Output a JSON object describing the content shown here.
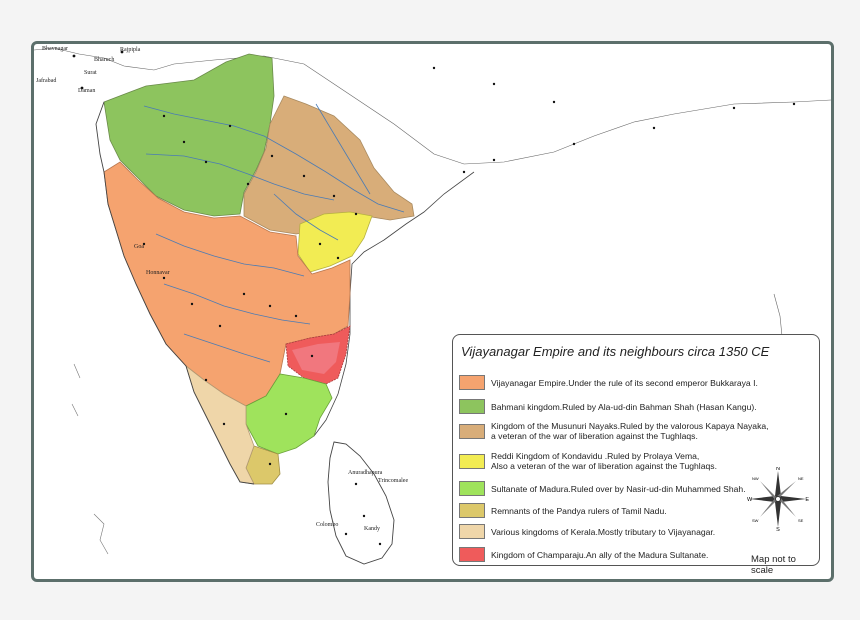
{
  "legend": {
    "title": "Vijayanagar Empire and its neighbours circa 1350 CE",
    "items": [
      {
        "id": "vijayanagar",
        "color": "#f5a36f",
        "label": "Vijayanagar Empire.Under the rule of its second emperor Bukkaraya I."
      },
      {
        "id": "bahmani",
        "color": "#8dc45e",
        "label": "Bahmani kingdom.Ruled by Ala-ud-din Bahman Shah (Hasan Kangu)."
      },
      {
        "id": "musunuri",
        "color": "#d8ad79",
        "label": "Kingdom of the Musunuri Nayaks.Ruled by the valorous Kapaya Nayaka,\na veteran of the war of  liberation against the Tughlaqs."
      },
      {
        "id": "reddi",
        "color": "#f2ec53",
        "label": "Reddi Kingdom of Kondavidu .Ruled by Prolaya Vema,\nAlso a veteran of the war of  liberation against the Tughlaqs."
      },
      {
        "id": "madura",
        "color": "#9fe35c",
        "label": "Sultanate of Madura.Ruled over by Nasir-ud-din Muhammed Shah."
      },
      {
        "id": "pandya",
        "color": "#dcc86a",
        "label": "Remnants of the Pandya rulers of Tamil Nadu."
      },
      {
        "id": "kerala",
        "color": "#efd6a9",
        "label": "Various kingdoms of Kerala.Mostly tributary to Vijayanagar."
      },
      {
        "id": "champaraju",
        "color": "#ef5b5b",
        "label": "Kingdom of Champaraju.An ally of the Madura Sultanate."
      }
    ]
  },
  "scale_note": "Map not to scale",
  "compass": {
    "n": "N",
    "s": "S",
    "e": "E",
    "w": "W",
    "ne": "NE",
    "nw": "NW",
    "se": "SE",
    "sw": "SW"
  },
  "places": {
    "bhavnagar": "Bhavnagar",
    "bharuch": "Bharuch",
    "rajpipla": "Rajpipla",
    "daman": "Daman",
    "jafrabad": "Jafrabad",
    "surat": "Surat",
    "goa": "Goa",
    "honnavar": "Honnavar",
    "colombo": "Colombo",
    "anuradhapura": "Anuradhapura",
    "kandy": "Kandy",
    "trincomalee": "Trincomalee"
  },
  "colors": {
    "land": "#ffffff",
    "coast": "#444444",
    "river": "#4a7bb5",
    "frame": "#5c6f6b"
  }
}
